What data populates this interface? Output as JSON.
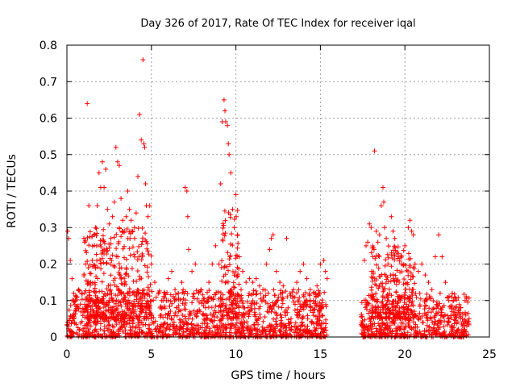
{
  "chart_data": {
    "type": "scatter",
    "title": "Day 326 of 2017, Rate Of TEC Index for receiver iqal",
    "xlabel": "GPS time / hours",
    "ylabel": "ROTI / TECUs",
    "xlim": [
      0,
      25
    ],
    "ylim": [
      0,
      0.8
    ],
    "xticks": [
      0,
      5,
      10,
      15,
      20,
      25
    ],
    "xtick_labels": [
      "0",
      "5",
      "10",
      "15",
      "20",
      "25"
    ],
    "yticks": [
      0,
      0.1,
      0.2,
      0.3,
      0.4,
      0.5,
      0.6,
      0.7,
      0.8
    ],
    "ytick_labels": [
      "0",
      "0.1",
      "0.2",
      "0.3",
      "0.4",
      "0.5",
      "0.6",
      "0.7",
      "0.8"
    ],
    "grid": true,
    "marker": "+",
    "series": [
      {
        "name": "ROTI",
        "color": "#ff0000",
        "points": [
          [
            0.05,
            0.29
          ],
          [
            0.1,
            0.27
          ],
          [
            0.2,
            0.21
          ],
          [
            0.3,
            0.16
          ],
          [
            0.4,
            0.12
          ],
          [
            0.5,
            0.1
          ],
          [
            0.6,
            0.11
          ],
          [
            0.7,
            0.13
          ],
          [
            0.8,
            0.09
          ],
          [
            0.9,
            0.12
          ],
          [
            1.0,
            0.27
          ],
          [
            1.05,
            0.26
          ],
          [
            1.1,
            0.2
          ],
          [
            1.2,
            0.64
          ],
          [
            1.3,
            0.36
          ],
          [
            1.4,
            0.15
          ],
          [
            1.5,
            0.21
          ],
          [
            1.6,
            0.28
          ],
          [
            1.7,
            0.3
          ],
          [
            1.8,
            0.36
          ],
          [
            1.9,
            0.45
          ],
          [
            2.0,
            0.41
          ],
          [
            2.1,
            0.48
          ],
          [
            2.2,
            0.41
          ],
          [
            2.3,
            0.46
          ],
          [
            2.4,
            0.35
          ],
          [
            2.5,
            0.31
          ],
          [
            2.6,
            0.27
          ],
          [
            2.7,
            0.33
          ],
          [
            2.8,
            0.37
          ],
          [
            2.9,
            0.52
          ],
          [
            3.0,
            0.48
          ],
          [
            3.1,
            0.47
          ],
          [
            3.2,
            0.38
          ],
          [
            3.3,
            0.32
          ],
          [
            3.4,
            0.29
          ],
          [
            3.5,
            0.33
          ],
          [
            3.6,
            0.4
          ],
          [
            3.7,
            0.35
          ],
          [
            3.8,
            0.32
          ],
          [
            3.9,
            0.29
          ],
          [
            4.0,
            0.3
          ],
          [
            4.1,
            0.34
          ],
          [
            4.2,
            0.44
          ],
          [
            4.3,
            0.61
          ],
          [
            4.4,
            0.54
          ],
          [
            4.5,
            0.76
          ],
          [
            4.55,
            0.53
          ],
          [
            4.6,
            0.52
          ],
          [
            4.65,
            0.42
          ],
          [
            4.7,
            0.36
          ],
          [
            4.8,
            0.33
          ],
          [
            4.9,
            0.36
          ],
          [
            5.0,
            0.2
          ],
          [
            5.2,
            0.15
          ],
          [
            5.4,
            0.12
          ],
          [
            5.6,
            0.1
          ],
          [
            5.8,
            0.12
          ],
          [
            6.0,
            0.16
          ],
          [
            6.2,
            0.18
          ],
          [
            6.4,
            0.13
          ],
          [
            6.6,
            0.12
          ],
          [
            6.8,
            0.15
          ],
          [
            7.0,
            0.41
          ],
          [
            7.1,
            0.4
          ],
          [
            7.15,
            0.33
          ],
          [
            7.2,
            0.24
          ],
          [
            7.4,
            0.18
          ],
          [
            7.6,
            0.2
          ],
          [
            7.8,
            0.12
          ],
          [
            8.0,
            0.1
          ],
          [
            8.2,
            0.08
          ],
          [
            8.4,
            0.15
          ],
          [
            8.6,
            0.2
          ],
          [
            8.8,
            0.25
          ],
          [
            9.0,
            0.2
          ],
          [
            9.1,
            0.42
          ],
          [
            9.2,
            0.59
          ],
          [
            9.3,
            0.65
          ],
          [
            9.35,
            0.62
          ],
          [
            9.4,
            0.59
          ],
          [
            9.5,
            0.58
          ],
          [
            9.55,
            0.53
          ],
          [
            9.6,
            0.5
          ],
          [
            9.7,
            0.45
          ],
          [
            9.8,
            0.35
          ],
          [
            9.9,
            0.3
          ],
          [
            10.0,
            0.39
          ],
          [
            10.1,
            0.28
          ],
          [
            10.2,
            0.22
          ],
          [
            10.4,
            0.18
          ],
          [
            10.6,
            0.15
          ],
          [
            10.8,
            0.16
          ],
          [
            11.0,
            0.15
          ],
          [
            11.2,
            0.16
          ],
          [
            11.4,
            0.14
          ],
          [
            11.6,
            0.13
          ],
          [
            11.8,
            0.2
          ],
          [
            12.0,
            0.24
          ],
          [
            12.1,
            0.27
          ],
          [
            12.2,
            0.28
          ],
          [
            12.4,
            0.18
          ],
          [
            12.6,
            0.15
          ],
          [
            12.8,
            0.14
          ],
          [
            13.0,
            0.27
          ],
          [
            13.2,
            0.12
          ],
          [
            13.4,
            0.13
          ],
          [
            13.6,
            0.15
          ],
          [
            13.8,
            0.18
          ],
          [
            14.0,
            0.2
          ],
          [
            14.2,
            0.16
          ],
          [
            14.4,
            0.13
          ],
          [
            14.6,
            0.12
          ],
          [
            14.8,
            0.14
          ],
          [
            15.0,
            0.2
          ],
          [
            15.2,
            0.21
          ],
          [
            15.3,
            0.18
          ],
          [
            15.4,
            0.16
          ],
          [
            17.6,
            0.21
          ],
          [
            17.7,
            0.25
          ],
          [
            17.8,
            0.26
          ],
          [
            17.9,
            0.31
          ],
          [
            18.0,
            0.3
          ],
          [
            18.1,
            0.22
          ],
          [
            18.2,
            0.51
          ],
          [
            18.3,
            0.29
          ],
          [
            18.4,
            0.26
          ],
          [
            18.5,
            0.28
          ],
          [
            18.6,
            0.36
          ],
          [
            18.7,
            0.41
          ],
          [
            18.75,
            0.37
          ],
          [
            18.8,
            0.3
          ],
          [
            18.9,
            0.27
          ],
          [
            19.0,
            0.2
          ],
          [
            19.2,
            0.33
          ],
          [
            19.3,
            0.29
          ],
          [
            19.4,
            0.27
          ],
          [
            19.6,
            0.22
          ],
          [
            19.8,
            0.2
          ],
          [
            20.0,
            0.25
          ],
          [
            20.2,
            0.3
          ],
          [
            20.3,
            0.32
          ],
          [
            20.4,
            0.29
          ],
          [
            20.5,
            0.28
          ],
          [
            20.6,
            0.2
          ],
          [
            20.8,
            0.18
          ],
          [
            21.0,
            0.2
          ],
          [
            21.2,
            0.17
          ],
          [
            21.4,
            0.15
          ],
          [
            21.6,
            0.13
          ],
          [
            21.8,
            0.22
          ],
          [
            22.0,
            0.28
          ],
          [
            22.2,
            0.22
          ],
          [
            22.4,
            0.15
          ],
          [
            22.6,
            0.1
          ],
          [
            22.8,
            0.12
          ],
          [
            23.0,
            0.08
          ],
          [
            23.2,
            0.06
          ],
          [
            23.4,
            0.05
          ],
          [
            23.6,
            0.06
          ],
          [
            23.8,
            0.05
          ]
        ],
        "dense_segments": [
          {
            "x_start": 0.0,
            "x_end": 15.4,
            "y_min": 0.0,
            "y_max": 0.13
          },
          {
            "x_start": 1.0,
            "x_end": 5.0,
            "y_min": 0.05,
            "y_max": 0.3
          },
          {
            "x_start": 9.1,
            "x_end": 10.2,
            "y_min": 0.05,
            "y_max": 0.35
          },
          {
            "x_start": 17.4,
            "x_end": 23.8,
            "y_min": 0.0,
            "y_max": 0.12
          },
          {
            "x_start": 18.0,
            "x_end": 20.6,
            "y_min": 0.05,
            "y_max": 0.25
          }
        ]
      }
    ]
  }
}
